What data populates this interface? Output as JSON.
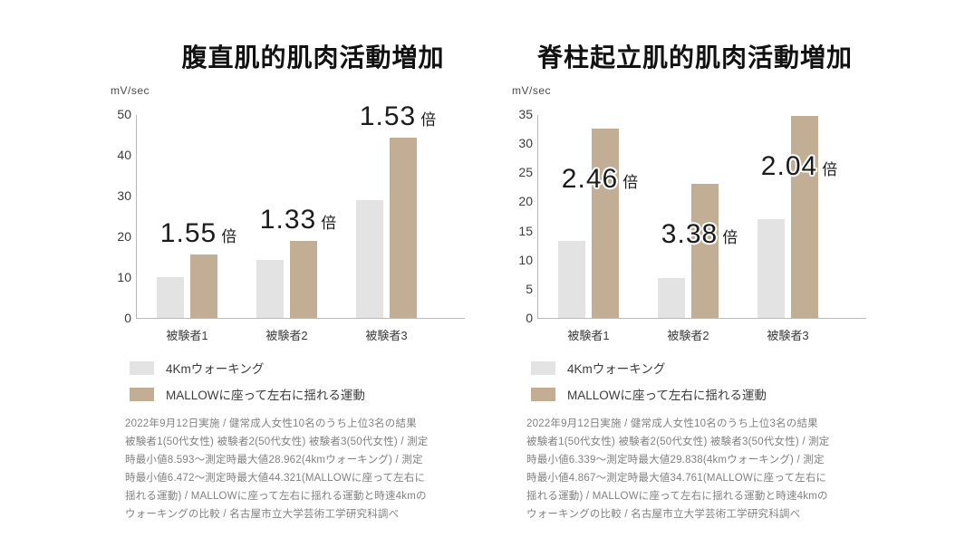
{
  "page": {
    "background": "#ffffff",
    "text_color": "#1c1c1c"
  },
  "chart_data": [
    {
      "type": "bar",
      "title": "腹直肌的肌肉活動増加",
      "ylabel": "mV/sec",
      "categories": [
        "被験者1",
        "被験者2",
        "被験者3"
      ],
      "series": [
        {
          "name": "4Kmウォーキング",
          "color": "#e3e3e4",
          "values": [
            10.0,
            14.3,
            28.96
          ]
        },
        {
          "name": "MALLOWに座って左右に揺れる運動",
          "color": "#c2ae94",
          "values": [
            15.5,
            19.0,
            44.32
          ]
        }
      ],
      "ratio_labels": [
        "1.55",
        "1.33",
        "1.53"
      ],
      "ratio_suffix": "倍",
      "ratio_label_placement": "above",
      "ylim": [
        0,
        50
      ],
      "ytick_step": 10,
      "grid": false,
      "legend_position": "bottom-left",
      "footnote": "2022年9月12日実施 / 健常成人女性10名のうち上位3名の結果 被験者1(50代女性) 被験者2(50代女性) 被験者3(50代女性) / 測定時最小値8.593～測定時最大値28.962(4kmウォーキング) / 測定時最小値6.472～測定時最大値44.321(MALLOWに座って左右に揺れる運動) / MALLOWに座って左右に揺れる運動と時速4kmのウォーキングの比較 / 名古屋市立大学芸術工学研究科調べ"
    },
    {
      "type": "bar",
      "title": "脊柱起立肌的肌肉活動増加",
      "ylabel": "mV/sec",
      "categories": [
        "被験者1",
        "被験者2",
        "被験者3"
      ],
      "series": [
        {
          "name": "4Kmウォーキング",
          "color": "#e3e3e4",
          "values": [
            13.2,
            6.8,
            17.0
          ]
        },
        {
          "name": "MALLOWに座って左右に揺れる運動",
          "color": "#c2ae94",
          "values": [
            32.5,
            23.0,
            34.76
          ]
        }
      ],
      "ratio_labels": [
        "2.46",
        "3.38",
        "2.04"
      ],
      "ratio_suffix": "倍",
      "ratio_label_placement": "overlap",
      "ylim": [
        0,
        35
      ],
      "ytick_step": 5,
      "grid": false,
      "legend_position": "bottom-left",
      "footnote": "2022年9月12日実施 / 健常成人女性10名のうち上位3名の結果 被験者1(50代女性) 被験者2(50代女性) 被験者3(50代女性) / 測定時最小値6.339～測定時最大値29.838(4kmウォーキング) / 測定時最小値4.867～測定時最大値34.761(MALLOWに座って左右に揺れる運動) / MALLOWに座って左右に揺れる運動と時速4kmのウォーキングの比較 / 名古屋市立大学芸術工学研究科調べ"
    }
  ]
}
